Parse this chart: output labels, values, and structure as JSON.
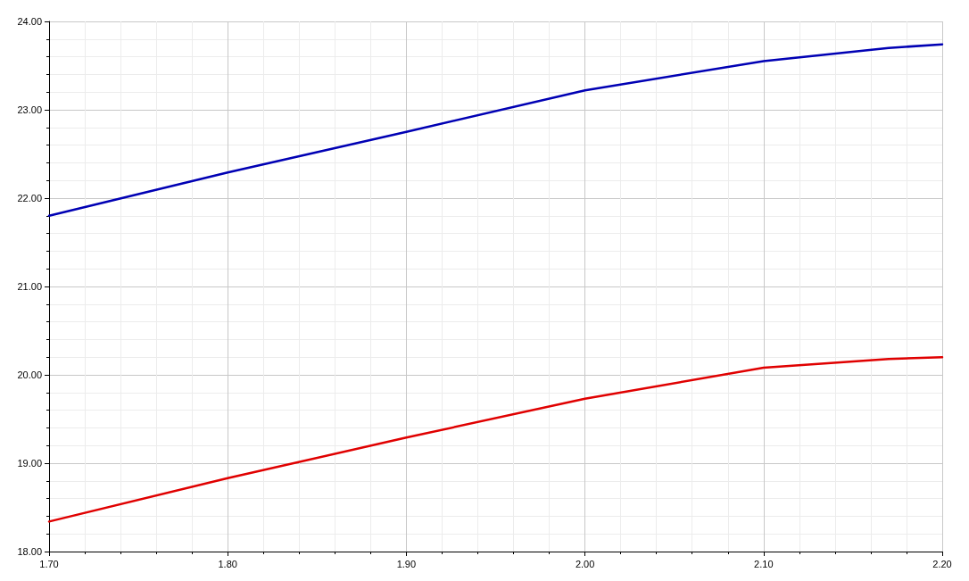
{
  "chart_data": {
    "type": "line",
    "x": [
      1.7,
      1.8,
      1.9,
      2.0,
      2.1,
      2.17,
      2.2
    ],
    "series": [
      {
        "color": "#0000b4",
        "values": [
          21.8,
          22.29,
          22.75,
          23.22,
          23.55,
          23.7,
          23.74
        ]
      },
      {
        "color": "#e00000",
        "values": [
          18.34,
          18.83,
          19.29,
          19.73,
          20.08,
          20.18,
          20.2
        ]
      }
    ],
    "xlim": [
      1.7,
      2.2
    ],
    "xticks": [
      {
        "value": 1.7,
        "label": "1.70"
      },
      {
        "value": 1.8,
        "label": "1.80"
      },
      {
        "value": 1.9,
        "label": "1.90"
      },
      {
        "value": 2.0,
        "label": "2.00"
      },
      {
        "value": 2.1,
        "label": "2.10"
      },
      {
        "value": 2.2,
        "label": "2.20"
      }
    ],
    "ylim": [
      18,
      24
    ],
    "yticks": [
      {
        "value": 18,
        "label": "18.00"
      },
      {
        "value": 19,
        "label": "19.00"
      },
      {
        "value": 20,
        "label": "20.00"
      },
      {
        "value": 21,
        "label": "21.00"
      },
      {
        "value": 22,
        "label": "22.00"
      },
      {
        "value": 23,
        "label": "23.00"
      },
      {
        "value": 24,
        "label": "24.00"
      }
    ],
    "grid": true,
    "marker": "none",
    "line_style": "solid"
  }
}
